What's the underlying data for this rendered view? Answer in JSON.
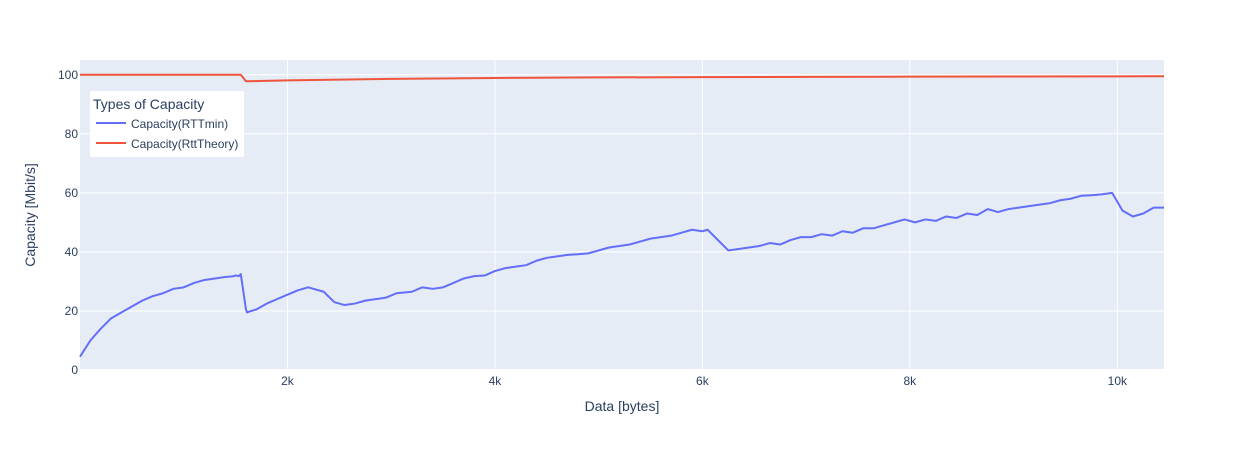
{
  "chart_data": {
    "type": "line",
    "xlabel": "Data [bytes]",
    "ylabel": "Capacity [Mbit/s]",
    "xlim": [
      0,
      10450
    ],
    "ylim": [
      0,
      105
    ],
    "x_ticks": [
      {
        "value": 2000,
        "label": "2k"
      },
      {
        "value": 4000,
        "label": "4k"
      },
      {
        "value": 6000,
        "label": "6k"
      },
      {
        "value": 8000,
        "label": "8k"
      },
      {
        "value": 10000,
        "label": "10k"
      }
    ],
    "y_ticks": [
      {
        "value": 0,
        "label": "0"
      },
      {
        "value": 20,
        "label": "20"
      },
      {
        "value": 40,
        "label": "40"
      },
      {
        "value": 60,
        "label": "60"
      },
      {
        "value": 80,
        "label": "80"
      },
      {
        "value": 100,
        "label": "100"
      }
    ],
    "grid": true,
    "legend": {
      "title": "Types of Capacity",
      "position": "top-left"
    },
    "series": [
      {
        "name": "Capacity(RTTmin)",
        "color": "#636efa",
        "x": [
          0,
          100,
          200,
          300,
          400,
          500,
          600,
          700,
          800,
          900,
          1000,
          1100,
          1200,
          1300,
          1400,
          1470,
          1480,
          1500,
          1530,
          1550,
          1600,
          1610,
          1650,
          1700,
          1800,
          1900,
          2000,
          2100,
          2200,
          2250,
          2350,
          2450,
          2550,
          2650,
          2750,
          2850,
          2950,
          3050,
          3200,
          3300,
          3400,
          3500,
          3600,
          3700,
          3800,
          3900,
          4000,
          4100,
          4200,
          4300,
          4400,
          4500,
          4600,
          4700,
          4800,
          4900,
          5000,
          5100,
          5200,
          5300,
          5400,
          5500,
          5600,
          5700,
          5800,
          5900,
          6000,
          6050,
          6250,
          6350,
          6450,
          6550,
          6650,
          6750,
          6850,
          6950,
          7050,
          7150,
          7250,
          7350,
          7450,
          7550,
          7650,
          7750,
          7850,
          7950,
          8050,
          8150,
          8250,
          8350,
          8450,
          8550,
          8650,
          8750,
          8850,
          8950,
          9050,
          9150,
          9250,
          9350,
          9450,
          9550,
          9650,
          9750,
          9850,
          9950,
          10050,
          10150,
          10250,
          10350,
          10450
        ],
        "y": [
          4.5,
          10,
          14,
          17.5,
          19.5,
          21.5,
          23.5,
          25,
          26,
          27.5,
          28,
          29.5,
          30.5,
          31,
          31.5,
          31.7,
          31.8,
          32,
          31.8,
          32.5,
          20.5,
          19.5,
          20,
          20.5,
          22.5,
          24,
          25.5,
          27,
          28,
          27.5,
          26.5,
          23,
          22,
          22.5,
          23.5,
          24,
          24.5,
          26,
          26.5,
          28,
          27.5,
          28,
          29.5,
          31,
          31.8,
          32,
          33.5,
          34.5,
          35,
          35.5,
          37,
          38,
          38.5,
          39,
          39.2,
          39.5,
          40.5,
          41.5,
          42,
          42.5,
          43.5,
          44.5,
          45,
          45.5,
          46.5,
          47.5,
          47,
          47.5,
          40.5,
          41,
          41.5,
          42,
          43,
          42.5,
          44,
          45,
          45,
          46,
          45.5,
          47,
          46.5,
          48,
          48,
          49,
          50,
          51,
          50,
          51,
          50.5,
          52,
          51.5,
          53,
          52.5,
          54.5,
          53.5,
          54.5,
          55,
          55.5,
          56,
          56.5,
          57.5,
          58,
          59,
          59.2,
          59.5,
          60,
          54,
          52,
          53,
          55,
          55
        ]
      },
      {
        "name": "Capacity(RttTheory)",
        "color": "#ef553b",
        "x": [
          0,
          1470,
          1510,
          1550,
          1600,
          2000,
          3000,
          4000,
          5000,
          6000,
          7000,
          8000,
          9000,
          10000,
          10450
        ],
        "y": [
          100,
          100,
          100,
          100,
          97.8,
          98.1,
          98.6,
          98.9,
          99.1,
          99.2,
          99.3,
          99.35,
          99.4,
          99.45,
          99.5
        ]
      }
    ]
  }
}
